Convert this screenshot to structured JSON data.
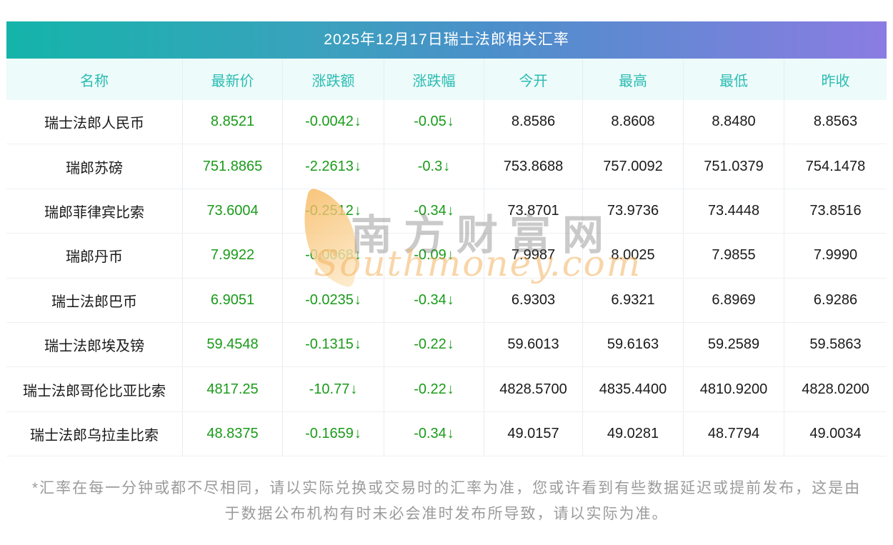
{
  "header": {
    "title": "2025年12月17日瑞士法郎相关汇率"
  },
  "table": {
    "columns": [
      "名称",
      "最新价",
      "涨跌额",
      "涨跌幅",
      "今开",
      "最高",
      "最低",
      "昨收"
    ],
    "down_arrow": "↓",
    "rows": [
      {
        "name": "瑞士法郎人民币",
        "latest": "8.8521",
        "change": "-0.0042",
        "change_pct": "-0.05",
        "open": "8.8586",
        "high": "8.8608",
        "low": "8.8480",
        "prev_close": "8.8563"
      },
      {
        "name": "瑞郎苏磅",
        "latest": "751.8865",
        "change": "-2.2613",
        "change_pct": "-0.3",
        "open": "753.8688",
        "high": "757.0092",
        "low": "751.0379",
        "prev_close": "754.1478"
      },
      {
        "name": "瑞郎菲律宾比索",
        "latest": "73.6004",
        "change": "-0.2512",
        "change_pct": "-0.34",
        "open": "73.8701",
        "high": "73.9736",
        "low": "73.4448",
        "prev_close": "73.8516"
      },
      {
        "name": "瑞郎丹币",
        "latest": "7.9922",
        "change": "-0.0068",
        "change_pct": "-0.09",
        "open": "7.9987",
        "high": "8.0025",
        "low": "7.9855",
        "prev_close": "7.9990"
      },
      {
        "name": "瑞士法郎巴币",
        "latest": "6.9051",
        "change": "-0.0235",
        "change_pct": "-0.34",
        "open": "6.9303",
        "high": "6.9321",
        "low": "6.8969",
        "prev_close": "6.9286"
      },
      {
        "name": "瑞士法郎埃及镑",
        "latest": "59.4548",
        "change": "-0.1315",
        "change_pct": "-0.22",
        "open": "59.6013",
        "high": "59.6163",
        "low": "59.2589",
        "prev_close": "59.5863"
      },
      {
        "name": "瑞士法郎哥伦比亚比索",
        "latest": "4817.25",
        "change": "-10.77",
        "change_pct": "-0.22",
        "open": "4828.5700",
        "high": "4835.4400",
        "low": "4810.9200",
        "prev_close": "4828.0200"
      },
      {
        "name": "瑞士法郎乌拉圭比索",
        "latest": "48.8375",
        "change": "-0.1659",
        "change_pct": "-0.34",
        "open": "49.0157",
        "high": "49.0281",
        "low": "48.7794",
        "prev_close": "49.0034"
      }
    ]
  },
  "watermark": {
    "site_name": "南方财富网",
    "domain": "Southmoney.com"
  },
  "footer": {
    "line1": "*汇率在每一分钟或都不尽相同，请以实际兑换或交易时的汇率为准，您或许看到有些数据延迟或提前发布，这是由",
    "line2": "于数据公布机构有时未必会准时发布所导致，请以实际为准。"
  },
  "colors": {
    "gradient_start": "#14b4aa",
    "gradient_mid": "#4b8fca",
    "gradient_end": "#8b7ce2",
    "header_row_bg": "#edfbfa",
    "header_text": "#2abcb2",
    "down_green": "#1a9b1a",
    "value_text": "#1a1a1a",
    "disclaimer_text": "#9b9b9b"
  }
}
